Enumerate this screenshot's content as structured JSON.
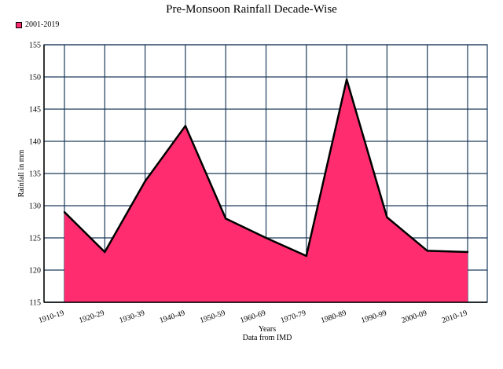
{
  "chart_data": {
    "type": "area",
    "title": "Pre-Monsoon Rainfall Decade-Wise",
    "xlabel": "Years",
    "subtitle": "Data from IMD",
    "ylabel": "Rainfall in mm",
    "categories": [
      "1910-19",
      "1920-29",
      "1930-39",
      "1940-49",
      "1950-59",
      "1960-69",
      "1970-79",
      "1980-89",
      "1990-99",
      "2000-09",
      "2010-19"
    ],
    "series": [
      {
        "name": "2001-2019",
        "values": [
          129.0,
          122.8,
          133.8,
          142.4,
          128.0,
          125.0,
          122.2,
          149.6,
          128.2,
          123.0,
          122.8
        ]
      }
    ],
    "ylim": [
      115,
      155
    ],
    "yticks": [
      115,
      120,
      125,
      130,
      135,
      140,
      145,
      150,
      155
    ],
    "grid": true,
    "legend_position": "top-left",
    "colors": {
      "fill": "#ff2d6f",
      "line": "#000000",
      "grid": "#1c3a5a"
    }
  }
}
